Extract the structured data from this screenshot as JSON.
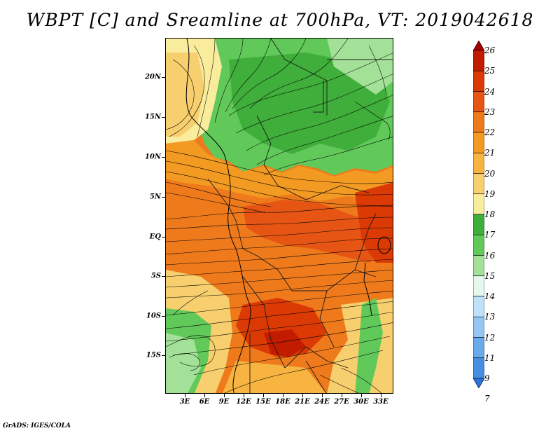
{
  "title": "WBPT [C] and Sreamline at 700hPa, VT: 2019042618",
  "credit": "GrADS: IGES/COLA",
  "map": {
    "lat_labels": [
      "20N",
      "15N",
      "10N",
      "5N",
      "EQ",
      "5S",
      "10S",
      "15S"
    ],
    "lon_labels": [
      "3E",
      "6E",
      "9E",
      "12E",
      "15E",
      "18E",
      "21E",
      "24E",
      "27E",
      "30E",
      "33E"
    ],
    "field": "Wet-bulb potential temperature (shaded) with 700hPa streamlines"
  },
  "colorbar": {
    "labels": [
      "26",
      "25",
      "24",
      "23",
      "22",
      "21",
      "20",
      "19",
      "18",
      "17",
      "16",
      "15",
      "14",
      "13",
      "12",
      "11",
      "9",
      "7"
    ],
    "colors": [
      "#a50000",
      "#c21b00",
      "#db3a05",
      "#e65514",
      "#ee7a1c",
      "#f39a22",
      "#f7b440",
      "#f7cf6e",
      "#f9ec9c",
      "#3fae3a",
      "#61c85a",
      "#a2e197",
      "#e6f8ee",
      "#bfe1fa",
      "#95c7f2",
      "#6aaaeb",
      "#458fe3",
      "#2b72da"
    ]
  }
}
